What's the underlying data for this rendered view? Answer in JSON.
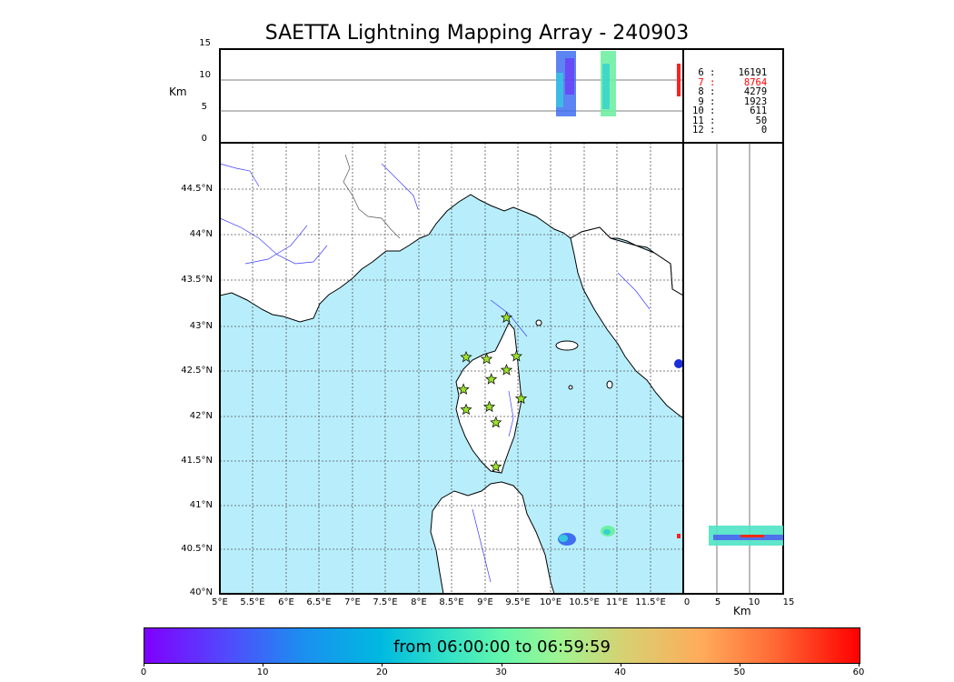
{
  "title": "SAETTA Lightning Mapping Array - 240903",
  "top_panel": {
    "ylabel": "Km",
    "y_ticks": [
      "15",
      "10",
      "5",
      "0"
    ]
  },
  "map_panel": {
    "lat_ticks": [
      "44.5°N",
      "44°N",
      "43.5°N",
      "43°N",
      "42.5°N",
      "42°N",
      "41.5°N",
      "41°N",
      "40.5°N",
      "40°N"
    ],
    "lon_ticks": [
      "5°E",
      "5.5°E",
      "6°E",
      "6.5°E",
      "7°E",
      "7.5°E",
      "8°E",
      "8.5°E",
      "9°E",
      "9.5°E",
      "10°E",
      "10.5°E",
      "11°E",
      "11.5°E"
    ],
    "stations_lonlat": [
      [
        9.33,
        43.0
      ],
      [
        8.72,
        42.57
      ],
      [
        9.03,
        42.55
      ],
      [
        9.48,
        42.58
      ],
      [
        9.1,
        42.33
      ],
      [
        9.33,
        42.43
      ],
      [
        8.68,
        42.22
      ],
      [
        9.55,
        42.12
      ],
      [
        8.72,
        42.0
      ],
      [
        9.07,
        42.03
      ],
      [
        9.17,
        41.86
      ],
      [
        9.17,
        41.38
      ]
    ],
    "colors": {
      "sea": "#b8eefc",
      "land": "#ffffff",
      "rivers": "#3b3bff",
      "borders": "#555555",
      "station": "#9be22b"
    }
  },
  "side_panel": {
    "xlabel": "Km",
    "x_ticks": [
      "0",
      "5",
      "10",
      "15"
    ]
  },
  "counts": [
    {
      "level": "6",
      "value": "16191",
      "color": "#000000"
    },
    {
      "level": "7",
      "value": "8764",
      "color": "#ff0000"
    },
    {
      "level": "8",
      "value": "4279",
      "color": "#000000"
    },
    {
      "level": "9",
      "value": "1923",
      "color": "#000000"
    },
    {
      "level": "10",
      "value": "611",
      "color": "#000000"
    },
    {
      "level": "11",
      "value": "50",
      "color": "#000000"
    },
    {
      "level": "12",
      "value": "0",
      "color": "#000000"
    }
  ],
  "colorbar": {
    "label": "from 06:00:00 to 06:59:59",
    "ticks": [
      "0",
      "10",
      "20",
      "30",
      "40",
      "50",
      "60"
    ]
  }
}
